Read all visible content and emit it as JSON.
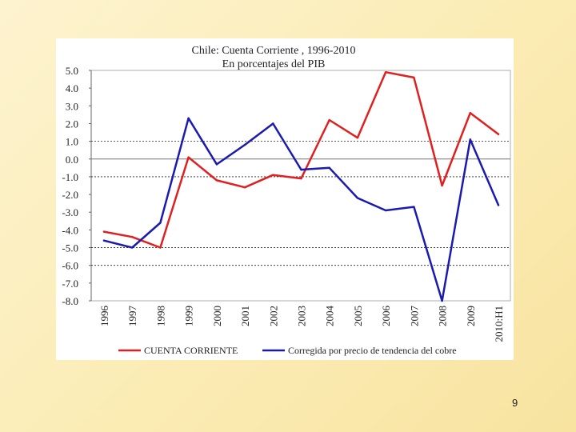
{
  "slide": {
    "page_number": "9"
  },
  "chart_data": {
    "type": "line",
    "title": "Chile: Cuenta Corriente , 1996-2010",
    "subtitle": "En porcentajes del PIB",
    "categories": [
      "1996",
      "1997",
      "1998",
      "1999",
      "2000",
      "2001",
      "2002",
      "2003",
      "2004",
      "2005",
      "2006",
      "2007",
      "2008",
      "2009",
      "2010:H1"
    ],
    "ylim": [
      -8.0,
      5.0
    ],
    "yticks": [
      "5.0",
      "4.0",
      "3.0",
      "2.0",
      "1.0",
      "0.0",
      "-1.0",
      "-2.0",
      "-3.0",
      "-4.0",
      "-5.0",
      "-6.0",
      "-7.0",
      "-8.0"
    ],
    "dashed_gridlines": [
      1.0,
      -1.0,
      -5.0,
      -6.0
    ],
    "zero_line": 0.0,
    "legend_position": "bottom",
    "series": [
      {
        "name": "CUENTA CORRIENTE",
        "color": "#e02020",
        "values": [
          -4.1,
          -4.4,
          -5.0,
          0.1,
          -1.2,
          -1.6,
          -0.9,
          -1.1,
          2.2,
          1.2,
          4.9,
          4.6,
          -1.5,
          2.6,
          1.4
        ]
      },
      {
        "name": "Corregida por precio de tendencia del cobre",
        "color": "#1a1ab0",
        "values": [
          -4.6,
          -5.0,
          -3.6,
          2.3,
          -0.3,
          0.8,
          2.0,
          -0.6,
          -0.5,
          -2.2,
          -2.9,
          -2.7,
          -8.0,
          1.1,
          -2.6
        ]
      }
    ]
  }
}
